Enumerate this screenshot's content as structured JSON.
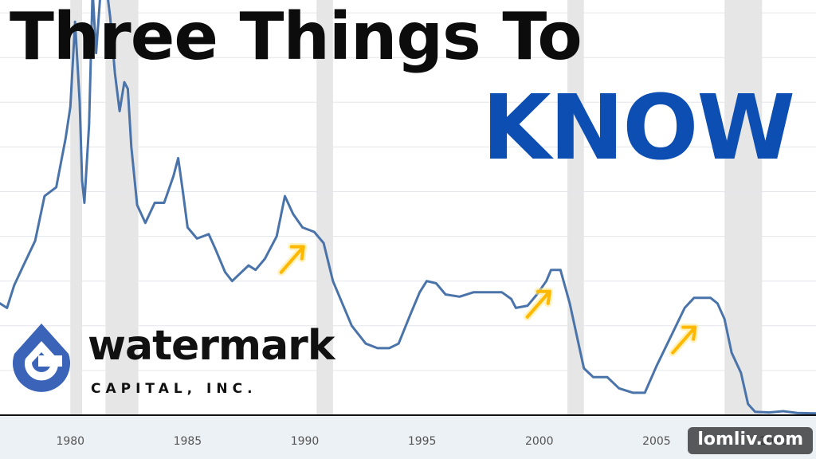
{
  "headline": {
    "line1": "Three Things To",
    "line2": "KNOW"
  },
  "logo": {
    "name": "watermark",
    "sub": "CAPITAL, INC.",
    "icon": "water-drop-icon"
  },
  "badge": {
    "text": "lomliv.com"
  },
  "colors": {
    "line": "#4a73aa",
    "headline_dark": "#0c0c0c",
    "headline_accent": "#0d4eb2",
    "logo_icon": "#3b63b8",
    "arrow": "#ffb800",
    "recession_band": "#e6e6e6"
  },
  "chart_data": {
    "type": "line",
    "title": "",
    "xlabel": "",
    "ylabel": "",
    "xlim": [
      1977,
      2011.8
    ],
    "ylim": [
      0,
      20
    ],
    "grid": true,
    "x_ticks": [
      1980,
      1985,
      1990,
      1995,
      2000,
      2005,
      2010
    ],
    "x_tick_labels": [
      "1980",
      "1985",
      "1990",
      "1995",
      "2000",
      "2005",
      "2010"
    ],
    "recessions": [
      [
        1980.0,
        1980.5
      ],
      [
        1981.5,
        1982.9
      ],
      [
        1990.5,
        1991.2
      ],
      [
        2001.2,
        2001.9
      ],
      [
        2007.9,
        2009.5
      ]
    ],
    "series": [
      {
        "values": [
          [
            1977.0,
            5.0
          ],
          [
            1977.3,
            4.8
          ],
          [
            1977.6,
            5.8
          ],
          [
            1978.0,
            6.7
          ],
          [
            1978.5,
            7.8
          ],
          [
            1978.9,
            9.8
          ],
          [
            1979.4,
            10.2
          ],
          [
            1979.8,
            12.4
          ],
          [
            1980.0,
            13.8
          ],
          [
            1980.2,
            17.6
          ],
          [
            1980.4,
            14.0
          ],
          [
            1980.5,
            10.5
          ],
          [
            1980.6,
            9.5
          ],
          [
            1980.8,
            13.0
          ],
          [
            1980.95,
            19.0
          ],
          [
            1981.1,
            16.2
          ],
          [
            1981.3,
            19.1
          ],
          [
            1981.5,
            19.5
          ],
          [
            1981.7,
            17.8
          ],
          [
            1981.9,
            15.3
          ],
          [
            1982.1,
            13.6
          ],
          [
            1982.3,
            14.9
          ],
          [
            1982.45,
            14.6
          ],
          [
            1982.6,
            12.0
          ],
          [
            1982.85,
            9.4
          ],
          [
            1983.2,
            8.6
          ],
          [
            1983.6,
            9.5
          ],
          [
            1984.0,
            9.5
          ],
          [
            1984.4,
            10.7
          ],
          [
            1984.6,
            11.5
          ],
          [
            1984.8,
            10.0
          ],
          [
            1985.0,
            8.4
          ],
          [
            1985.4,
            7.9
          ],
          [
            1985.9,
            8.1
          ],
          [
            1986.2,
            7.4
          ],
          [
            1986.6,
            6.4
          ],
          [
            1986.9,
            6.0
          ],
          [
            1987.2,
            6.3
          ],
          [
            1987.6,
            6.7
          ],
          [
            1987.9,
            6.5
          ],
          [
            1988.3,
            7.0
          ],
          [
            1988.8,
            8.0
          ],
          [
            1989.15,
            9.8
          ],
          [
            1989.5,
            9.0
          ],
          [
            1989.9,
            8.4
          ],
          [
            1990.4,
            8.2
          ],
          [
            1990.8,
            7.7
          ],
          [
            1991.2,
            6.0
          ],
          [
            1991.6,
            5.0
          ],
          [
            1992.0,
            4.0
          ],
          [
            1992.6,
            3.2
          ],
          [
            1993.1,
            3.0
          ],
          [
            1993.6,
            3.0
          ],
          [
            1994.0,
            3.2
          ],
          [
            1994.5,
            4.5
          ],
          [
            1994.9,
            5.5
          ],
          [
            1995.2,
            6.0
          ],
          [
            1995.6,
            5.9
          ],
          [
            1996.0,
            5.4
          ],
          [
            1996.6,
            5.3
          ],
          [
            1997.2,
            5.5
          ],
          [
            1997.8,
            5.5
          ],
          [
            1998.4,
            5.5
          ],
          [
            1998.8,
            5.2
          ],
          [
            1999.0,
            4.8
          ],
          [
            1999.5,
            4.9
          ],
          [
            1999.9,
            5.4
          ],
          [
            2000.3,
            6.0
          ],
          [
            2000.5,
            6.5
          ],
          [
            2000.9,
            6.5
          ],
          [
            2001.3,
            5.0
          ],
          [
            2001.9,
            2.1
          ],
          [
            2002.3,
            1.7
          ],
          [
            2002.9,
            1.7
          ],
          [
            2003.4,
            1.2
          ],
          [
            2004.0,
            1.0
          ],
          [
            2004.5,
            1.0
          ],
          [
            2005.0,
            2.2
          ],
          [
            2005.6,
            3.5
          ],
          [
            2006.2,
            4.8
          ],
          [
            2006.6,
            5.25
          ],
          [
            2007.3,
            5.25
          ],
          [
            2007.6,
            5.0
          ],
          [
            2007.9,
            4.3
          ],
          [
            2008.2,
            2.8
          ],
          [
            2008.6,
            1.9
          ],
          [
            2008.9,
            0.5
          ],
          [
            2009.2,
            0.15
          ],
          [
            2009.8,
            0.12
          ],
          [
            2010.4,
            0.18
          ],
          [
            2011.0,
            0.1
          ],
          [
            2011.8,
            0.08
          ]
        ]
      }
    ],
    "annotations": [
      {
        "type": "arrow",
        "x": 1989.5,
        "y": 7.0
      },
      {
        "type": "arrow",
        "x": 2000.0,
        "y": 5.0
      },
      {
        "type": "arrow",
        "x": 2006.2,
        "y": 3.4
      }
    ]
  }
}
